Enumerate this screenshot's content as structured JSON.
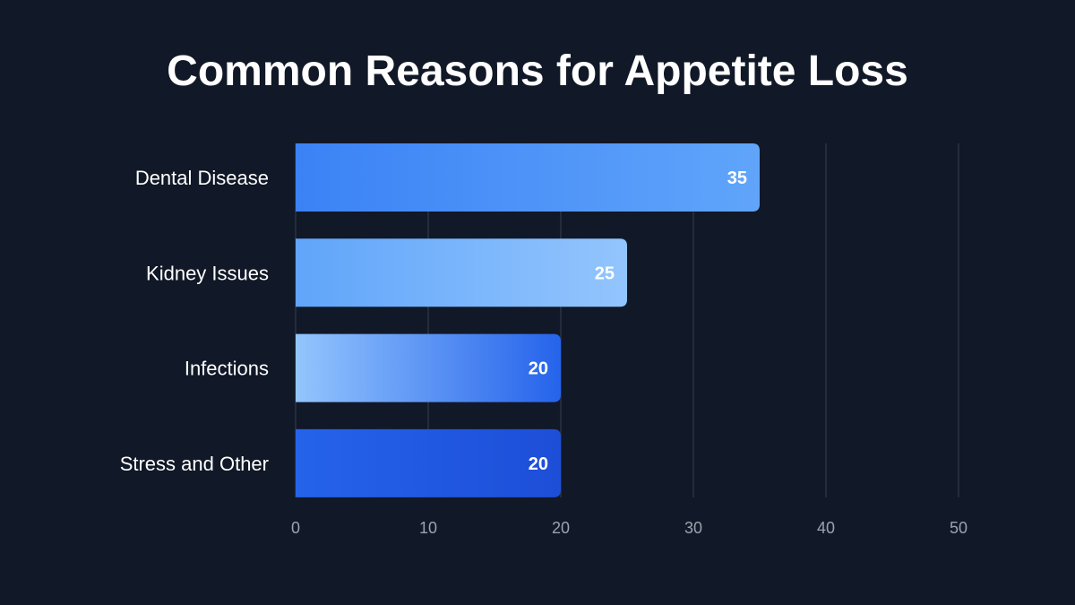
{
  "chart_data": {
    "type": "bar",
    "orientation": "horizontal",
    "title": "Common Reasons for Appetite Loss",
    "categories": [
      "Dental Disease",
      "Kidney Issues",
      "Infections",
      "Stress and Other"
    ],
    "values": [
      35,
      25,
      20,
      20
    ],
    "xlim": [
      0,
      50
    ],
    "xticks": [
      0,
      10,
      20,
      30,
      40,
      50
    ],
    "grid": true,
    "data_labels": true,
    "colors": {
      "background": "#111827",
      "bar_gradients": [
        [
          "#3b82f6",
          "#60a5fa"
        ],
        [
          "#60a5fa",
          "#93c5fd"
        ],
        [
          "#93c5fd",
          "#2563eb"
        ],
        [
          "#2563eb",
          "#1d4ed8"
        ]
      ],
      "grid": "#2a3344",
      "tick_text": "#9ca3af"
    }
  }
}
